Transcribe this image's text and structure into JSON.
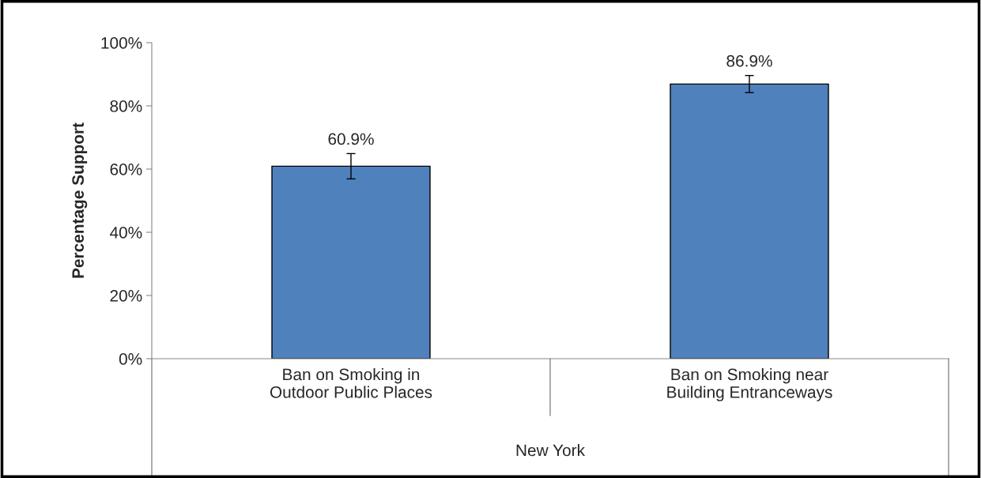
{
  "chart_data": {
    "type": "bar",
    "categories": [
      "Ban on Smoking in\nOutdoor Public Places",
      "Ban on Smoking near\nBuilding Entranceways"
    ],
    "values": [
      60.9,
      86.9
    ],
    "errors": [
      4,
      2.7
    ],
    "value_labels": [
      "60.9%",
      "86.9%"
    ],
    "color": "#4f81bd",
    "ylabel": "Percentage Support",
    "xlabel": "New York",
    "ylim": [
      0,
      100
    ],
    "yticks": [
      {
        "value": 0,
        "label": "0%"
      },
      {
        "value": 20,
        "label": "20%"
      },
      {
        "value": 40,
        "label": "40%"
      },
      {
        "value": 60,
        "label": "60%"
      },
      {
        "value": 80,
        "label": "80%"
      },
      {
        "value": 100,
        "label": "100%"
      }
    ],
    "grid": false
  }
}
